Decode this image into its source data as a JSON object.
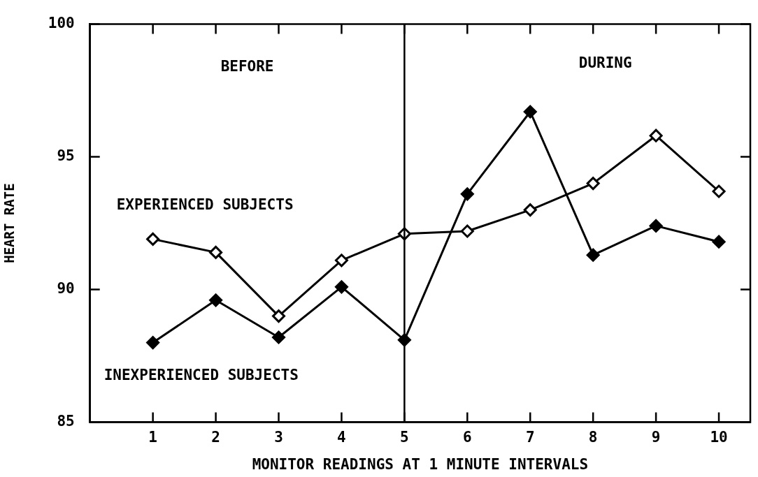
{
  "chart_data": {
    "type": "line",
    "xlabel": "MONITOR READINGS AT 1 MINUTE INTERVALS",
    "ylabel": "HEART RATE",
    "x": [
      1,
      2,
      3,
      4,
      5,
      6,
      7,
      8,
      9,
      10
    ],
    "series": [
      {
        "name": "EXPERIENCED SUBJECTS",
        "color": "#000000",
        "values": [
          91.9,
          91.4,
          89.0,
          91.1,
          92.1,
          92.2,
          93.0,
          94.0,
          95.8,
          93.7
        ]
      },
      {
        "name": "INEXPERIENCED SUBJECTS",
        "color": "#000000",
        "values": [
          88.0,
          89.6,
          88.2,
          90.1,
          88.1,
          93.6,
          96.7,
          91.3,
          92.4,
          91.8
        ]
      }
    ],
    "xlim": [
      0,
      10.5
    ],
    "xticks": [
      1,
      2,
      3,
      4,
      5,
      6,
      7,
      8,
      9,
      10
    ],
    "ylim": [
      85,
      100
    ],
    "yticks": [
      85,
      90,
      95,
      100
    ],
    "ref_lines": [
      {
        "axis": "x",
        "value": 5,
        "color": "#000000"
      }
    ],
    "annotations": [
      "BEFORE",
      "DURING"
    ],
    "marker": "diamond",
    "line_style": "solid",
    "grid": false,
    "legend": false
  }
}
